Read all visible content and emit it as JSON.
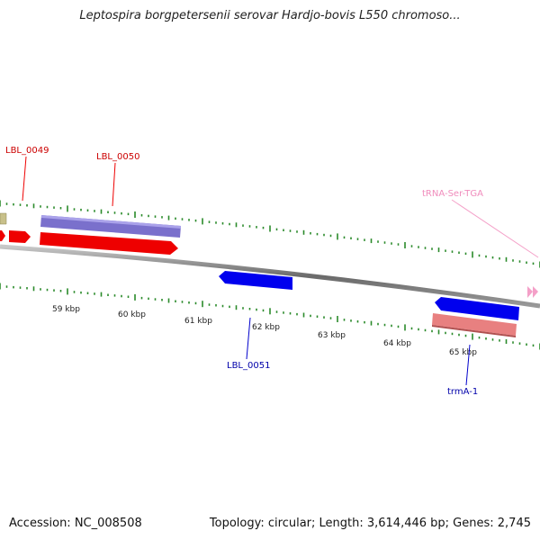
{
  "title": "Leptospira borgpetersenii serovar Hardjo-bovis L550 chromoso...",
  "footer": {
    "accession": "Accession: NC_008508",
    "summary": "Topology: circular; Length: 3,614,446 bp; Genes: 2,745"
  },
  "colors": {
    "tick": "#2a8a2a",
    "backbone": "#888888",
    "forward_gene": "#ee0000",
    "reverse_gene": "#0000ee",
    "forward_cds_feature": "#7a70cc",
    "reverse_cds_feature": "#e88080",
    "trna": "#f4a0c8",
    "olive": "#c8c08a"
  },
  "kbp_labels": [
    "59 kbp",
    "60 kbp",
    "61 kbp",
    "62 kbp",
    "63 kbp",
    "64 kbp",
    "65 kbp"
  ],
  "gene_labels": {
    "lbl_0049": "LBL_0049",
    "lbl_0050": "LBL_0050",
    "lbl_0051": "LBL_0051",
    "trma_1": "trmA-1",
    "trna_ser": "tRNA-Ser-TGA"
  }
}
